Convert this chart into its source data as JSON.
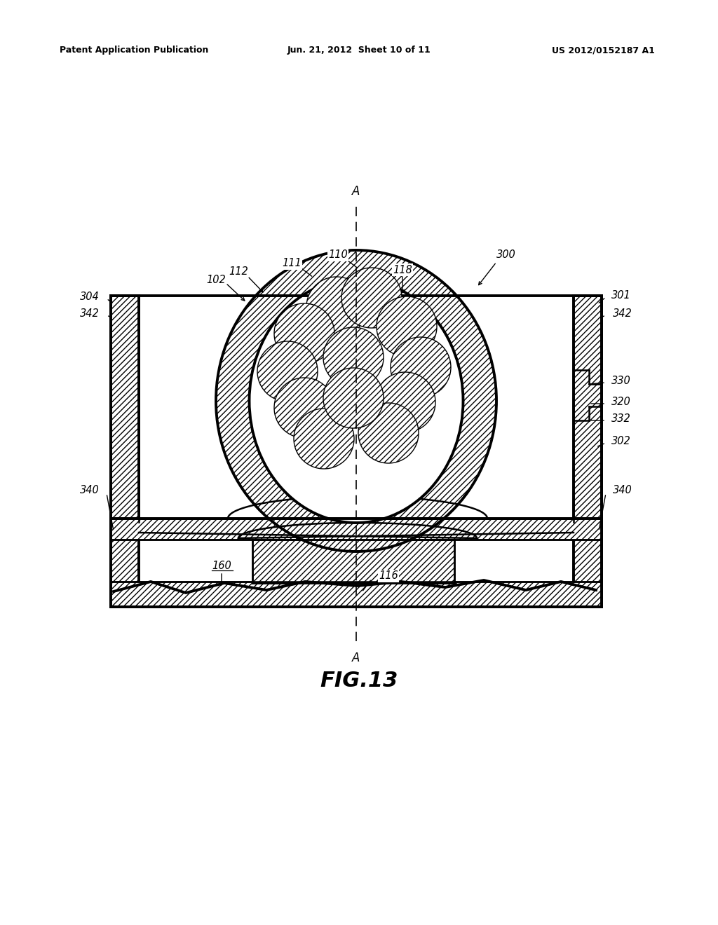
{
  "header_left": "Patent Application Publication",
  "header_center": "Jun. 21, 2012  Sheet 10 of 11",
  "header_right": "US 2012/0152187 A1",
  "figure_label": "FIG.13",
  "bg": "#ffffff",
  "lc": "#000000",
  "axis_label": "A"
}
